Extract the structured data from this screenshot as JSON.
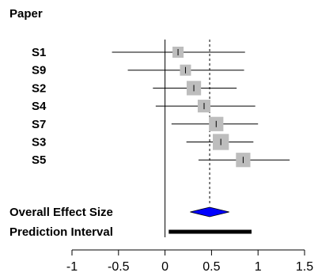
{
  "chart_data": {
    "type": "forest",
    "column_header": "Paper",
    "studies": [
      {
        "name": "S1",
        "estimate": 0.14,
        "lower": -0.57,
        "upper": 0.86,
        "weight": 0.7
      },
      {
        "name": "S9",
        "estimate": 0.22,
        "lower": -0.4,
        "upper": 0.85,
        "weight": 0.7
      },
      {
        "name": "S2",
        "estimate": 0.31,
        "lower": -0.13,
        "upper": 0.77,
        "weight": 1.0
      },
      {
        "name": "S4",
        "estimate": 0.42,
        "lower": -0.1,
        "upper": 0.97,
        "weight": 0.85
      },
      {
        "name": "S7",
        "estimate": 0.55,
        "lower": 0.07,
        "upper": 1.0,
        "weight": 1.0
      },
      {
        "name": "S3",
        "estimate": 0.6,
        "lower": 0.23,
        "upper": 0.95,
        "weight": 1.15
      },
      {
        "name": "S5",
        "estimate": 0.84,
        "lower": 0.36,
        "upper": 1.34,
        "weight": 1.0
      }
    ],
    "overall": {
      "label": "Overall Effect Size",
      "estimate": 0.48,
      "lower": 0.27,
      "upper": 0.69,
      "color": "#0000ff"
    },
    "prediction_interval": {
      "label": "Prediction Interval",
      "lower": 0.04,
      "upper": 0.93
    },
    "x_ticks": [
      "-1",
      "-0.5",
      "0",
      "0.5",
      "1",
      "1.5"
    ],
    "x_tick_values": [
      -1,
      -0.5,
      0,
      0.5,
      1,
      1.5
    ],
    "xlim": [
      -1,
      1.5
    ],
    "null_line": 0,
    "reference_line": 0.48,
    "marker_color": "#bdbdbd"
  }
}
